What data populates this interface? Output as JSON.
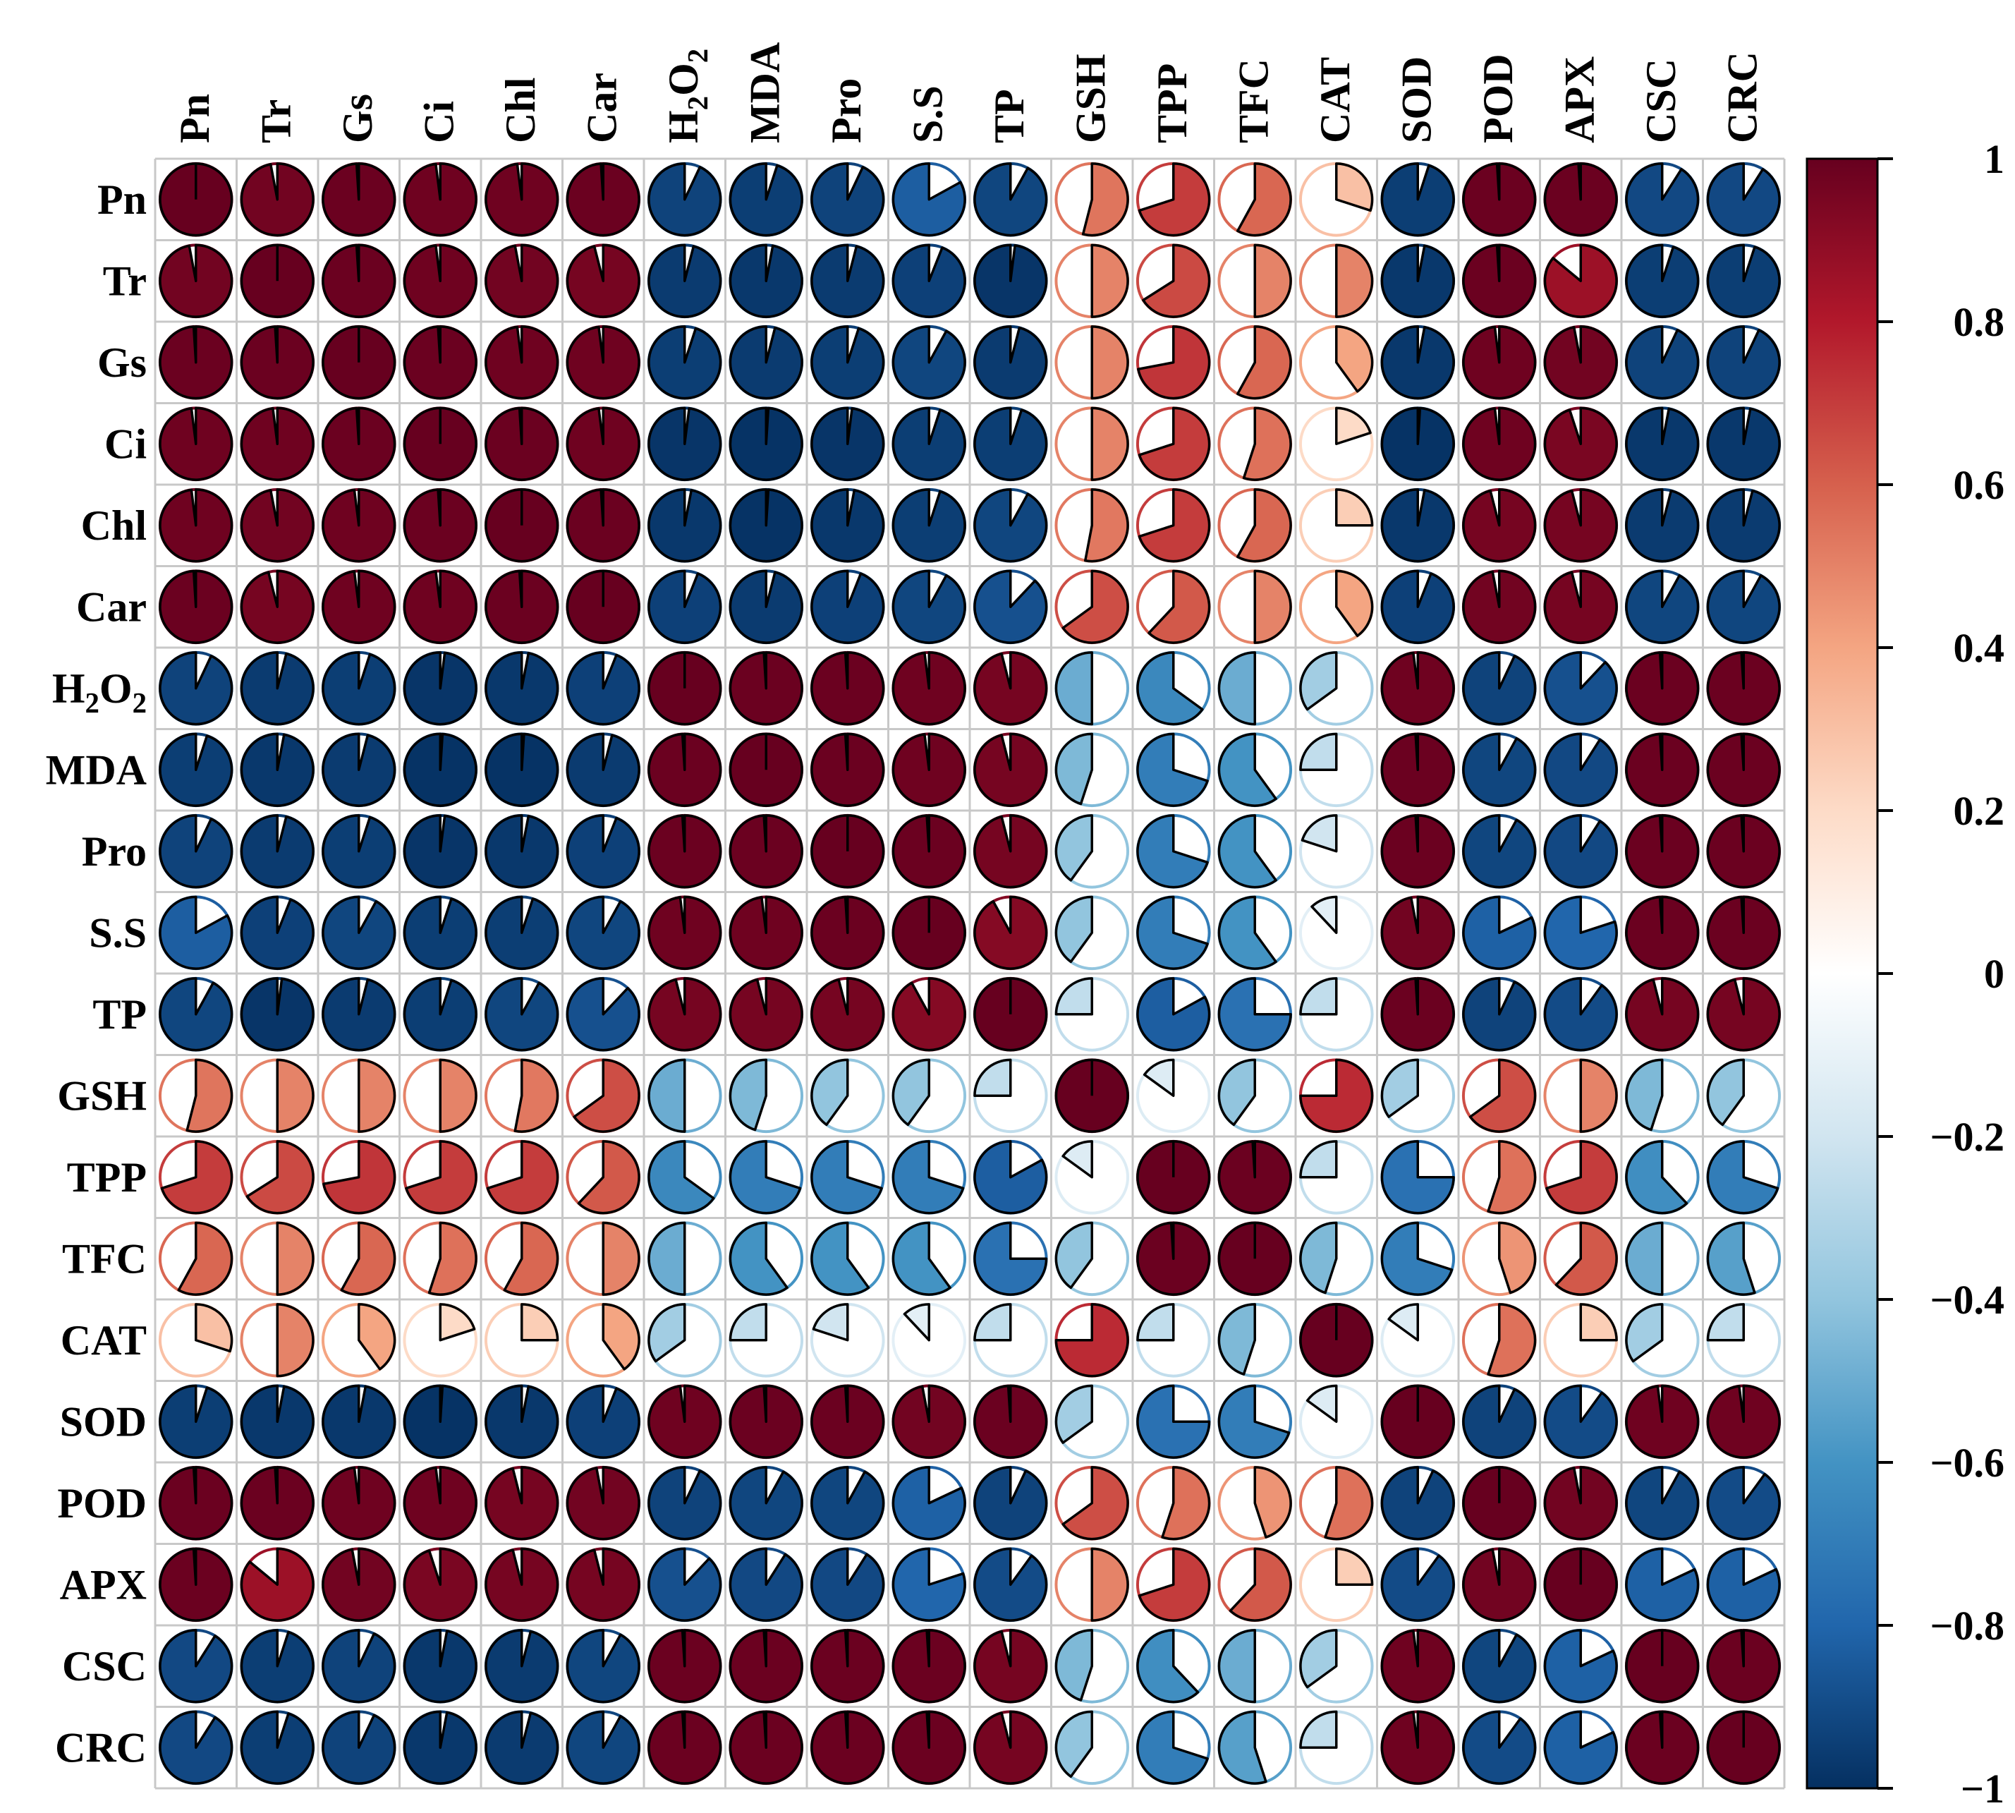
{
  "chart_data": {
    "type": "heatmap",
    "style": "pie-correlogram",
    "variables": [
      "Pn",
      "Tr",
      "Gs",
      "Ci",
      "Chl",
      "Car",
      "H2O2",
      "MDA",
      "Pro",
      "S.S",
      "TP",
      "GSH",
      "TPP",
      "TFC",
      "CAT",
      "SOD",
      "POD",
      "APX",
      "CSC",
      "CRC"
    ],
    "display_labels": [
      "Pn",
      "Tr",
      "Gs",
      "Ci",
      "Chl",
      "Car",
      "H₂O₂",
      "MDA",
      "Pro",
      "S.S",
      "TP",
      "GSH",
      "TPP",
      "TFC",
      "CAT",
      "SOD",
      "POD",
      "APX",
      "CSC",
      "CRC"
    ],
    "matrix": [
      [
        1.0,
        0.97,
        0.99,
        0.98,
        0.98,
        0.99,
        -0.93,
        -0.95,
        -0.93,
        -0.83,
        -0.92,
        0.54,
        0.7,
        0.58,
        0.3,
        -0.95,
        0.99,
        0.99,
        -0.91,
        -0.91
      ],
      [
        0.97,
        1.0,
        0.99,
        0.98,
        0.97,
        0.96,
        -0.96,
        -0.97,
        -0.96,
        -0.94,
        -0.98,
        0.5,
        0.66,
        0.5,
        0.5,
        -0.97,
        0.99,
        0.86,
        -0.95,
        -0.95
      ],
      [
        0.99,
        0.99,
        1.0,
        0.99,
        0.98,
        0.98,
        -0.95,
        -0.96,
        -0.95,
        -0.92,
        -0.96,
        0.5,
        0.72,
        0.58,
        0.4,
        -0.97,
        0.98,
        0.97,
        -0.93,
        -0.93
      ],
      [
        0.98,
        0.98,
        0.99,
        1.0,
        0.99,
        0.98,
        -0.98,
        -0.99,
        -0.98,
        -0.95,
        -0.95,
        0.5,
        0.7,
        0.55,
        0.2,
        -0.99,
        0.98,
        0.95,
        -0.97,
        -0.97
      ],
      [
        0.98,
        0.97,
        0.98,
        0.99,
        1.0,
        0.99,
        -0.97,
        -0.99,
        -0.97,
        -0.95,
        -0.92,
        0.53,
        0.7,
        0.58,
        0.25,
        -0.97,
        0.96,
        0.96,
        -0.96,
        -0.96
      ],
      [
        0.99,
        0.96,
        0.98,
        0.98,
        0.99,
        1.0,
        -0.94,
        -0.96,
        -0.94,
        -0.92,
        -0.88,
        0.65,
        0.62,
        0.5,
        0.4,
        -0.94,
        0.97,
        0.96,
        -0.92,
        -0.92
      ],
      [
        -0.93,
        -0.96,
        -0.95,
        -0.98,
        -0.97,
        -0.94,
        1.0,
        0.99,
        0.99,
        0.98,
        0.96,
        -0.5,
        -0.65,
        -0.5,
        -0.35,
        0.98,
        -0.93,
        -0.88,
        0.99,
        0.99
      ],
      [
        -0.95,
        -0.97,
        -0.96,
        -0.99,
        -0.99,
        -0.96,
        0.99,
        1.0,
        0.99,
        0.98,
        0.96,
        -0.45,
        -0.7,
        -0.6,
        -0.25,
        0.99,
        -0.92,
        -0.91,
        0.99,
        0.99
      ],
      [
        -0.93,
        -0.96,
        -0.95,
        -0.98,
        -0.97,
        -0.94,
        0.99,
        0.99,
        1.0,
        0.99,
        0.96,
        -0.4,
        -0.7,
        -0.6,
        -0.2,
        0.99,
        -0.92,
        -0.91,
        0.99,
        0.99
      ],
      [
        -0.83,
        -0.94,
        -0.92,
        -0.95,
        -0.95,
        -0.92,
        0.98,
        0.98,
        0.99,
        1.0,
        0.92,
        -0.4,
        -0.7,
        -0.6,
        -0.12,
        0.97,
        -0.82,
        -0.8,
        0.99,
        0.99
      ],
      [
        -0.92,
        -0.98,
        -0.96,
        -0.95,
        -0.92,
        -0.88,
        0.96,
        0.96,
        0.96,
        0.92,
        1.0,
        -0.25,
        -0.83,
        -0.75,
        -0.25,
        0.99,
        -0.93,
        -0.9,
        0.96,
        0.96
      ],
      [
        0.54,
        0.5,
        0.5,
        0.5,
        0.53,
        0.65,
        -0.5,
        -0.45,
        -0.4,
        -0.4,
        -0.25,
        1.0,
        -0.15,
        -0.4,
        0.75,
        -0.35,
        0.65,
        0.5,
        -0.45,
        -0.4
      ],
      [
        0.7,
        0.66,
        0.72,
        0.7,
        0.7,
        0.62,
        -0.65,
        -0.7,
        -0.7,
        -0.7,
        -0.83,
        -0.15,
        1.0,
        0.99,
        -0.25,
        -0.75,
        0.55,
        0.7,
        -0.62,
        -0.7
      ],
      [
        0.58,
        0.5,
        0.58,
        0.55,
        0.58,
        0.5,
        -0.5,
        -0.6,
        -0.6,
        -0.6,
        -0.75,
        -0.4,
        0.99,
        1.0,
        -0.45,
        -0.7,
        0.45,
        0.62,
        -0.5,
        -0.55
      ],
      [
        0.3,
        0.5,
        0.4,
        0.2,
        0.25,
        0.4,
        -0.35,
        -0.25,
        -0.2,
        -0.12,
        -0.25,
        0.75,
        -0.25,
        -0.45,
        1.0,
        -0.15,
        0.55,
        0.25,
        -0.35,
        -0.25
      ],
      [
        -0.95,
        -0.97,
        -0.97,
        -0.99,
        -0.97,
        -0.94,
        0.98,
        0.99,
        0.99,
        0.97,
        0.99,
        -0.35,
        -0.75,
        -0.7,
        -0.15,
        1.0,
        -0.93,
        -0.9,
        0.98,
        0.98
      ],
      [
        0.99,
        0.99,
        0.98,
        0.98,
        0.96,
        0.97,
        -0.93,
        -0.92,
        -0.92,
        -0.82,
        -0.93,
        0.65,
        0.55,
        0.45,
        0.55,
        -0.93,
        1.0,
        0.97,
        -0.92,
        -0.9
      ],
      [
        0.99,
        0.86,
        0.97,
        0.95,
        0.96,
        0.96,
        -0.88,
        -0.91,
        -0.91,
        -0.8,
        -0.9,
        0.5,
        0.7,
        0.62,
        0.25,
        -0.9,
        0.97,
        1.0,
        -0.82,
        -0.82
      ],
      [
        -0.91,
        -0.95,
        -0.93,
        -0.97,
        -0.96,
        -0.92,
        0.99,
        0.99,
        0.99,
        0.99,
        0.96,
        -0.45,
        -0.62,
        -0.5,
        -0.35,
        0.98,
        -0.92,
        -0.82,
        1.0,
        0.99
      ],
      [
        -0.91,
        -0.95,
        -0.93,
        -0.97,
        -0.96,
        -0.92,
        0.99,
        0.99,
        0.99,
        0.99,
        0.96,
        -0.4,
        -0.7,
        -0.55,
        -0.25,
        0.98,
        -0.9,
        -0.82,
        0.99,
        1.0
      ]
    ],
    "colorbar": {
      "range": [
        -1,
        1
      ],
      "ticks": [
        1,
        0.8,
        0.6,
        0.4,
        0.2,
        0,
        -0.2,
        -0.4,
        -0.6,
        -0.8,
        -1
      ],
      "tick_labels": [
        "1",
        "0.8",
        "0.6",
        "0.4",
        "0.2",
        "0",
        "−0.2",
        "−0.4",
        "−0.6",
        "−0.8",
        "−1"
      ],
      "palette": [
        "#67001F",
        "#B2182B",
        "#D6604D",
        "#F4A582",
        "#FDDBC7",
        "#FFFFFF",
        "#D1E5F0",
        "#92C5DE",
        "#4393C3",
        "#2166AC",
        "#053061"
      ]
    },
    "grid": true,
    "legend_position": "right"
  }
}
